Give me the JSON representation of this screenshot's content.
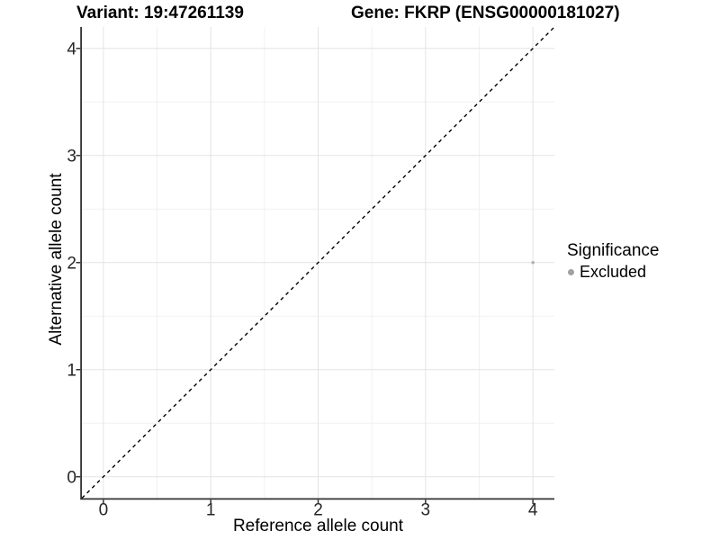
{
  "chart_data": {
    "type": "scatter",
    "title_left": "Variant: 19:47261139",
    "title_right": "Gene: FKRP (ENSG00000181027)",
    "xlabel": "Reference allele count",
    "ylabel": "Alternative allele count",
    "xlim": [
      -0.2,
      4.2
    ],
    "ylim": [
      -0.2,
      4.2
    ],
    "x_ticks": [
      0,
      1,
      2,
      3,
      4
    ],
    "y_ticks": [
      0,
      1,
      2,
      3,
      4
    ],
    "x_minor_ticks": [
      0.5,
      1.5,
      2.5,
      3.5
    ],
    "y_minor_ticks": [
      0.5,
      1.5,
      2.5,
      3.5
    ],
    "grid": true,
    "series": [
      {
        "name": "Excluded",
        "color": "#b3b3b3",
        "marker_radius": 1.8,
        "points": [
          {
            "x": 4,
            "y": 2
          }
        ]
      }
    ],
    "reference_line": {
      "kind": "identity",
      "from": [
        -0.2,
        -0.2
      ],
      "to": [
        4.2,
        4.2
      ],
      "style": "dashed",
      "color": "#000000"
    },
    "legend": {
      "title": "Significance",
      "position": "right",
      "entries": [
        {
          "label": "Excluded",
          "color": "#a1a1a1",
          "marker_radius": 3.5
        }
      ]
    },
    "colors": {
      "background": "#ffffff",
      "axis_line": "#333333",
      "tick": "#333333",
      "tick_label": "#262626",
      "grid_major": "#e4e4e4",
      "grid_minor": "#f1f1f1",
      "title": "#000000"
    }
  }
}
